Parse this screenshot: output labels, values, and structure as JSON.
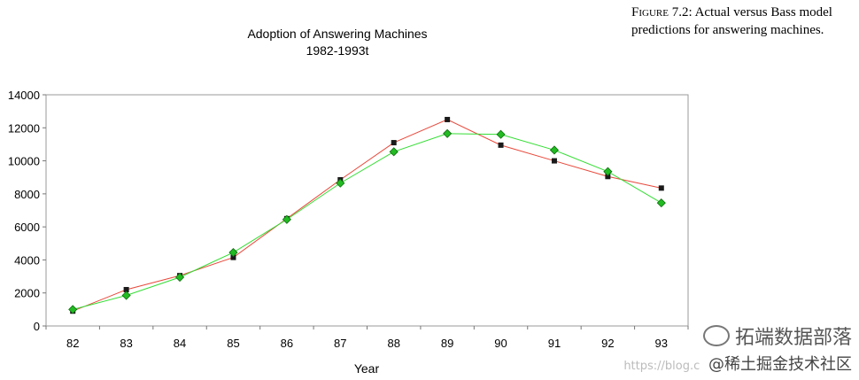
{
  "caption": {
    "figure_label": "Figure 7.2:",
    "text": "Actual versus Bass model predictions for answering machines."
  },
  "watermark": {
    "brand": "拓端数据部落",
    "url": "https://blog.c",
    "site": "@稀土掘金技术社区"
  },
  "chart_data": {
    "type": "line",
    "title": "Adoption of Answering Machines",
    "subtitle": "1982-1993t",
    "xlabel": "Year",
    "ylabel": "",
    "categories": [
      "82",
      "83",
      "84",
      "85",
      "86",
      "87",
      "88",
      "89",
      "90",
      "91",
      "92",
      "93"
    ],
    "ylim": [
      0,
      14000
    ],
    "yticks": [
      0,
      2000,
      4000,
      6000,
      8000,
      10000,
      12000,
      14000
    ],
    "grid": false,
    "legend": "none",
    "series": [
      {
        "name": "",
        "color": "#e8483a",
        "marker": "square",
        "marker_color": "#1a1a1a",
        "values": [
          900,
          2200,
          3050,
          4150,
          6500,
          8850,
          11100,
          12500,
          10950,
          10000,
          9050,
          8350
        ]
      },
      {
        "name": "",
        "color": "#33dd33",
        "marker": "diamond",
        "marker_color": "#22bb22",
        "values": [
          1000,
          1850,
          2950,
          4450,
          6450,
          8650,
          10550,
          11650,
          11600,
          10650,
          9350,
          7450
        ]
      }
    ]
  }
}
